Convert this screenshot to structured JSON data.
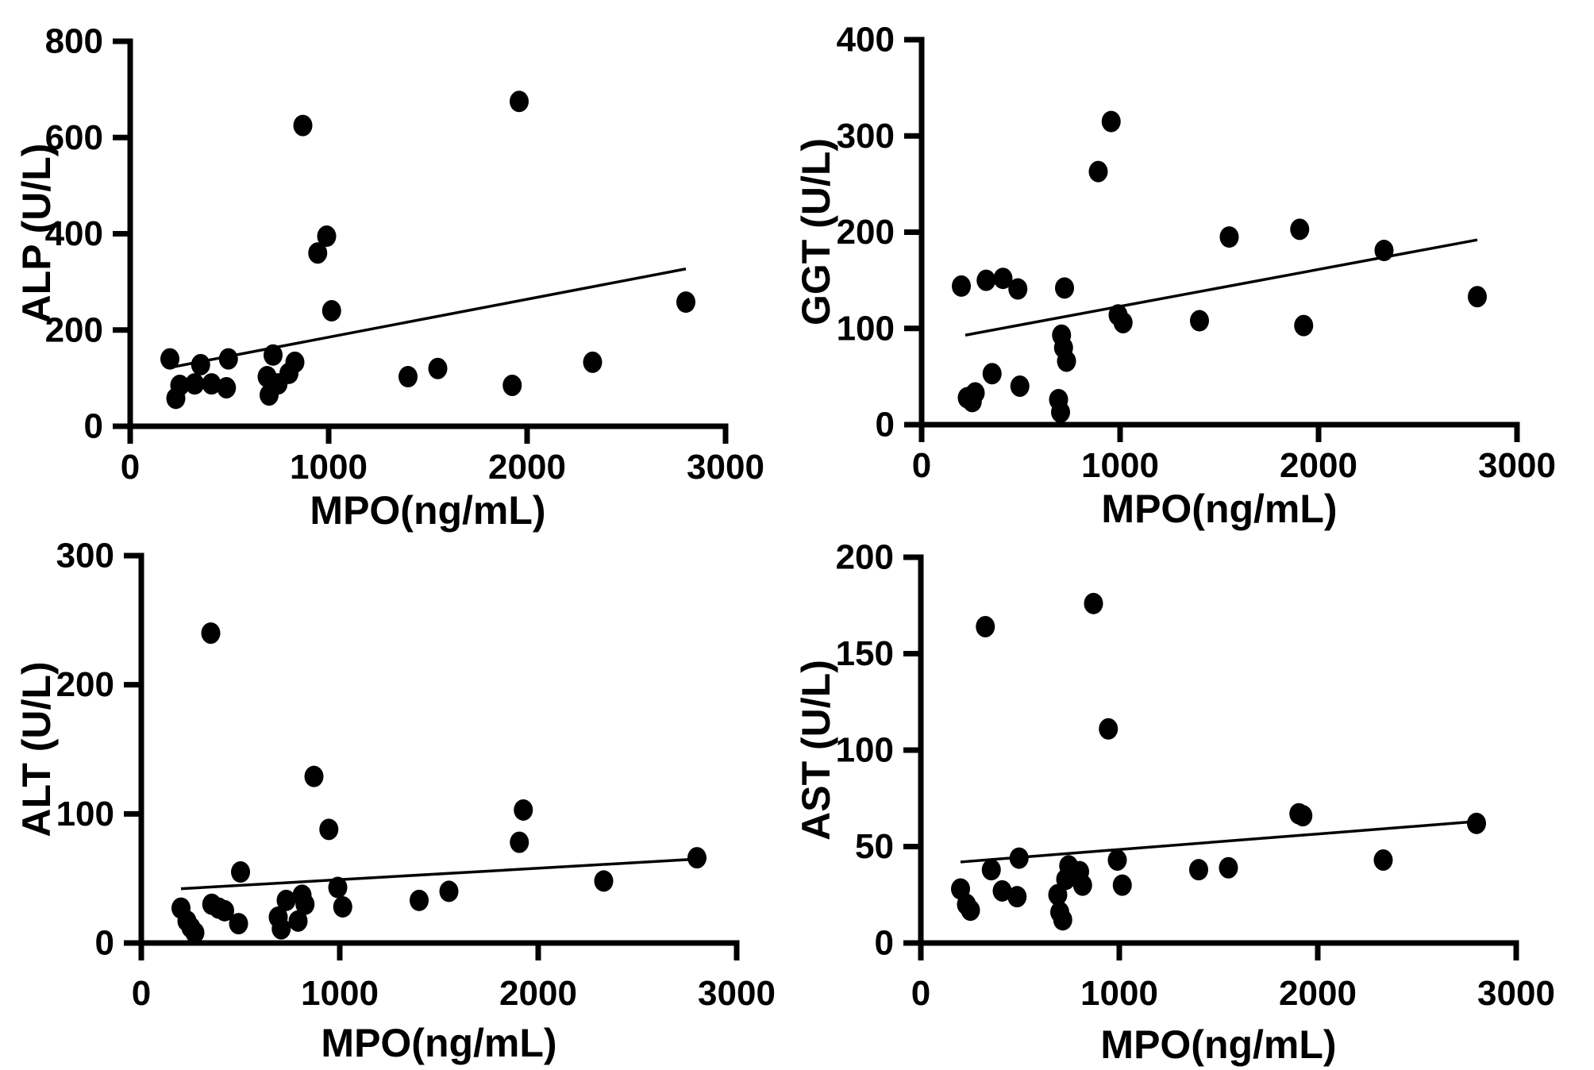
{
  "figure": {
    "background": "#ffffff",
    "ink_color": "#000000",
    "marker": "filled-circle",
    "grid": false,
    "legend": "none"
  },
  "chart_data": [
    {
      "id": "alp",
      "type": "scatter",
      "xlabel": "MPO(ng/mL)",
      "ylabel": "ALP (U/L)",
      "xlim": [
        0,
        3000
      ],
      "ylim": [
        0,
        800
      ],
      "xticks": [
        0,
        1000,
        2000,
        3000
      ],
      "yticks": [
        0,
        200,
        400,
        600,
        800
      ],
      "points": [
        [
          200,
          140
        ],
        [
          230,
          58
        ],
        [
          250,
          85
        ],
        [
          325,
          88
        ],
        [
          355,
          128
        ],
        [
          410,
          88
        ],
        [
          485,
          80
        ],
        [
          495,
          140
        ],
        [
          690,
          103
        ],
        [
          700,
          65
        ],
        [
          720,
          148
        ],
        [
          745,
          88
        ],
        [
          800,
          110
        ],
        [
          830,
          133
        ],
        [
          870,
          625
        ],
        [
          945,
          360
        ],
        [
          990,
          395
        ],
        [
          1015,
          240
        ],
        [
          1400,
          103
        ],
        [
          1550,
          120
        ],
        [
          1925,
          85
        ],
        [
          1960,
          675
        ],
        [
          2330,
          133
        ],
        [
          2800,
          258
        ]
      ],
      "trendline": {
        "x1": 200,
        "y1": 122,
        "x2": 2800,
        "y2": 327
      }
    },
    {
      "id": "ggt",
      "type": "scatter",
      "xlabel": "MPO(ng/mL)",
      "ylabel": "GGT (U/L)",
      "xlim": [
        0,
        3000
      ],
      "ylim": [
        0,
        400
      ],
      "xticks": [
        0,
        1000,
        2000,
        3000
      ],
      "yticks": [
        0,
        100,
        200,
        300,
        400
      ],
      "points": [
        [
          200,
          144
        ],
        [
          230,
          28
        ],
        [
          255,
          24
        ],
        [
          270,
          33
        ],
        [
          325,
          150
        ],
        [
          355,
          53
        ],
        [
          410,
          152
        ],
        [
          485,
          141
        ],
        [
          495,
          40
        ],
        [
          690,
          26
        ],
        [
          700,
          13
        ],
        [
          705,
          93
        ],
        [
          715,
          80
        ],
        [
          730,
          66
        ],
        [
          720,
          142
        ],
        [
          890,
          263
        ],
        [
          955,
          315
        ],
        [
          990,
          114
        ],
        [
          1015,
          106
        ],
        [
          1400,
          108
        ],
        [
          1550,
          195
        ],
        [
          1905,
          203
        ],
        [
          1925,
          103
        ],
        [
          2330,
          181
        ],
        [
          2800,
          133
        ]
      ],
      "trendline": {
        "x1": 220,
        "y1": 93,
        "x2": 2800,
        "y2": 192
      }
    },
    {
      "id": "alt",
      "type": "scatter",
      "xlabel": "MPO(ng/mL)",
      "ylabel": "ALT (U/L)",
      "xlim": [
        0,
        3000
      ],
      "ylim": [
        0,
        300
      ],
      "xticks": [
        0,
        1000,
        2000,
        3000
      ],
      "yticks": [
        0,
        100,
        200,
        300
      ],
      "points": [
        [
          200,
          27
        ],
        [
          230,
          17
        ],
        [
          250,
          12
        ],
        [
          270,
          8
        ],
        [
          350,
          240
        ],
        [
          355,
          30
        ],
        [
          390,
          27
        ],
        [
          420,
          25
        ],
        [
          490,
          15
        ],
        [
          500,
          55
        ],
        [
          690,
          20
        ],
        [
          705,
          11
        ],
        [
          730,
          33
        ],
        [
          790,
          17
        ],
        [
          810,
          37
        ],
        [
          825,
          30
        ],
        [
          870,
          129
        ],
        [
          945,
          88
        ],
        [
          990,
          43
        ],
        [
          1015,
          28
        ],
        [
          1400,
          33
        ],
        [
          1550,
          40
        ],
        [
          1905,
          78
        ],
        [
          1925,
          103
        ],
        [
          2330,
          48
        ],
        [
          2800,
          66
        ]
      ],
      "trendline": {
        "x1": 200,
        "y1": 42,
        "x2": 2800,
        "y2": 65
      }
    },
    {
      "id": "ast",
      "type": "scatter",
      "xlabel": "MPO(ng/mL)",
      "ylabel": "AST (U/L)",
      "xlim": [
        0,
        3000
      ],
      "ylim": [
        0,
        200
      ],
      "xticks": [
        0,
        1000,
        2000,
        3000
      ],
      "yticks": [
        0,
        50,
        100,
        150,
        200
      ],
      "points": [
        [
          200,
          28
        ],
        [
          230,
          20
        ],
        [
          250,
          17
        ],
        [
          325,
          164
        ],
        [
          355,
          38
        ],
        [
          410,
          27
        ],
        [
          485,
          24
        ],
        [
          495,
          44
        ],
        [
          690,
          25
        ],
        [
          700,
          16
        ],
        [
          715,
          12
        ],
        [
          730,
          33
        ],
        [
          745,
          40
        ],
        [
          800,
          37
        ],
        [
          815,
          30
        ],
        [
          870,
          176
        ],
        [
          945,
          111
        ],
        [
          990,
          43
        ],
        [
          1015,
          30
        ],
        [
          1400,
          38
        ],
        [
          1550,
          39
        ],
        [
          1905,
          67
        ],
        [
          1925,
          66
        ],
        [
          2330,
          43
        ],
        [
          2800,
          62
        ]
      ],
      "trendline": {
        "x1": 200,
        "y1": 42,
        "x2": 2800,
        "y2": 63
      }
    }
  ]
}
